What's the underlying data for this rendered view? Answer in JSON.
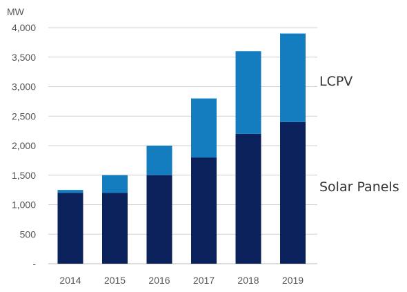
{
  "chart_data": {
    "type": "bar",
    "stacked": true,
    "ylabel": "MW",
    "ylim": [
      0,
      4000
    ],
    "yticks": [
      0,
      500,
      1000,
      1500,
      2000,
      2500,
      3000,
      3500,
      4000
    ],
    "ytick_labels": [
      "-",
      "500",
      "1,000",
      "1,500",
      "2,000",
      "2,500",
      "3,000",
      "3,500",
      "4,000"
    ],
    "categories": [
      "2014",
      "2015",
      "2016",
      "2017",
      "2018",
      "2019"
    ],
    "series": [
      {
        "name": "Solar Panels",
        "color": "#0a215c",
        "values": [
          1200,
          1200,
          1500,
          1800,
          2200,
          2400
        ]
      },
      {
        "name": "LCPV",
        "color": "#137dc0",
        "values": [
          50,
          300,
          500,
          1000,
          1400,
          1500
        ]
      }
    ],
    "grid": true,
    "legend": "right, inline labels"
  }
}
